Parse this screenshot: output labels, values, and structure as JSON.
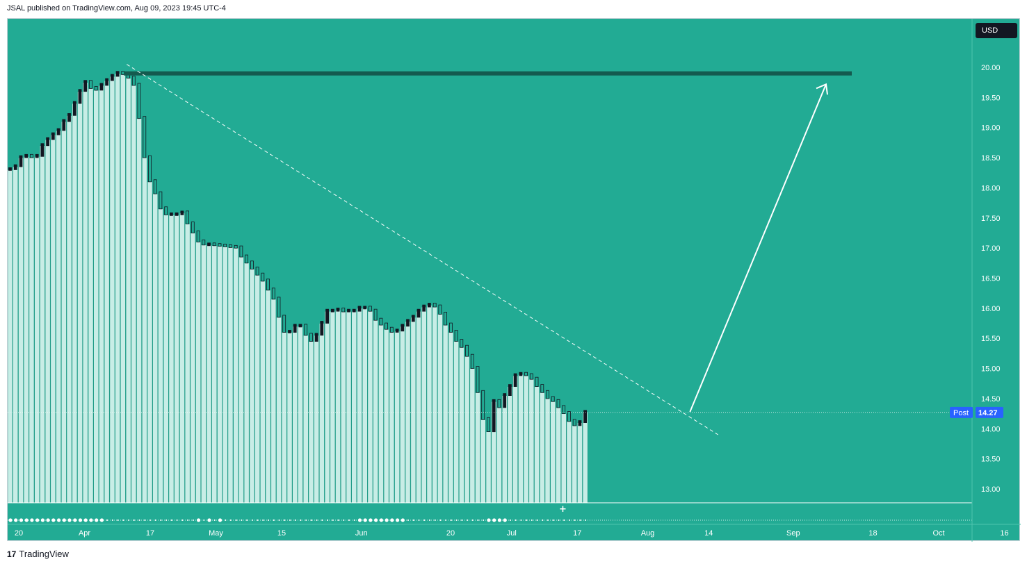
{
  "header": {
    "caption": "JSAL published on TradingView.com, Aug 09, 2023 19:45 UTC-4"
  },
  "currency_button": {
    "label": "USD"
  },
  "price_tag": {
    "session_label": "Post",
    "value": "14.27"
  },
  "footer": {
    "logo_mark": "17",
    "brand": "TradingView"
  },
  "colors": {
    "background": "#22ab94",
    "bar_fill": "#c8ede6",
    "volume": "#c4c9c7",
    "resistance": "#145a4f",
    "candle": "#131722",
    "price_tag": "#2962ff"
  },
  "chart_data": {
    "type": "candlestick",
    "title": "",
    "xlabel": "",
    "ylabel": "",
    "ylim": [
      12.8,
      20.4
    ],
    "y_ticks": [
      "20.00",
      "19.50",
      "19.00",
      "18.50",
      "18.00",
      "17.50",
      "17.00",
      "16.50",
      "16.00",
      "15.50",
      "15.00",
      "14.50",
      "14.00",
      "13.50",
      "13.00"
    ],
    "x_ticks": [
      {
        "label": "20",
        "date": "2023-03-20"
      },
      {
        "label": "Apr",
        "date": "2023-04-03"
      },
      {
        "label": "17",
        "date": "2023-04-17"
      },
      {
        "label": "May",
        "date": "2023-05-01"
      },
      {
        "label": "15",
        "date": "2023-05-15"
      },
      {
        "label": "Jun",
        "date": "2023-06-01"
      },
      {
        "label": "20",
        "date": "2023-06-20"
      },
      {
        "label": "Jul",
        "date": "2023-07-03"
      },
      {
        "label": "17",
        "date": "2023-07-17"
      },
      {
        "label": "Aug",
        "date": "2023-08-01"
      },
      {
        "label": "14",
        "date": "2023-08-14"
      },
      {
        "label": "Sep",
        "date": "2023-09-01"
      },
      {
        "label": "18",
        "date": "2023-09-18"
      },
      {
        "label": "Oct",
        "date": "2023-10-02"
      },
      {
        "label": "16",
        "date": "2023-10-16"
      }
    ],
    "close": [
      18.3,
      18.35,
      18.5,
      18.52,
      18.5,
      18.52,
      18.7,
      18.8,
      18.88,
      18.95,
      19.1,
      19.2,
      19.4,
      19.6,
      19.75,
      19.65,
      19.62,
      19.7,
      19.78,
      19.85,
      19.9,
      19.88,
      19.82,
      19.7,
      19.15,
      18.5,
      18.1,
      17.9,
      17.65,
      17.55,
      17.55,
      17.55,
      17.58,
      17.4,
      17.25,
      17.1,
      17.05,
      17.05,
      17.04,
      17.03,
      17.02,
      17.01,
      17.0,
      16.85,
      16.75,
      16.65,
      16.55,
      16.45,
      16.3,
      16.15,
      15.85,
      15.6,
      15.6,
      15.7,
      15.7,
      15.55,
      15.45,
      15.55,
      15.75,
      15.95,
      15.95,
      15.97,
      15.94,
      15.95,
      15.95,
      16.0,
      16.0,
      15.95,
      15.8,
      15.72,
      15.65,
      15.6,
      15.62,
      15.7,
      15.78,
      15.85,
      15.95,
      16.02,
      16.05,
      16.02,
      15.9,
      15.72,
      15.6,
      15.45,
      15.35,
      15.2,
      15.0,
      14.6,
      14.15,
      13.95,
      14.45,
      14.35,
      14.55,
      14.7,
      14.88,
      14.9,
      14.88,
      14.82,
      14.7,
      14.6,
      14.5,
      14.45,
      14.35,
      14.25,
      14.12,
      14.05,
      14.1,
      14.27
    ],
    "volume_bars": {
      "Mar 20-31": "low",
      "Jul 18": "spike"
    },
    "resistance_level": 19.9,
    "last_price": 14.27,
    "trendline": {
      "from": [
        "2023-04-12",
        20.05
      ],
      "to": [
        "2023-08-16",
        13.9
      ]
    },
    "projection_arrow": {
      "from": [
        "2023-08-10",
        14.28
      ],
      "to": [
        "2023-09-08",
        19.72
      ]
    }
  }
}
